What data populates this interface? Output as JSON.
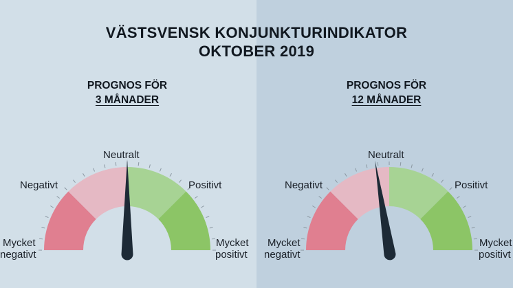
{
  "title": {
    "line1": "VÄSTSVENSK KONJUNKTURINDIKATOR",
    "line2": "OKTOBER 2019"
  },
  "gauges": [
    {
      "heading": "PROGNOS FÖR",
      "period": "3 MÅNADER",
      "needle_fraction": 0.5,
      "labels": {
        "very_negative_1": "Mycket",
        "very_negative_2": "negativt",
        "negative": "Negativt",
        "neutral": "Neutralt",
        "positive": "Positivt",
        "very_positive_1": "Mycket",
        "very_positive_2": "positivt"
      }
    },
    {
      "heading": "PROGNOS FÖR",
      "period": "12 MÅNADER",
      "needle_fraction": 0.45,
      "labels": {
        "very_negative_1": "Mycket",
        "very_negative_2": "negativt",
        "negative": "Negativt",
        "neutral": "Neutralt",
        "positive": "Positivt",
        "very_positive_1": "Mycket",
        "very_positive_2": "positivt"
      }
    }
  ],
  "colors": {
    "very_negative": "#e07f90",
    "negative": "#e5b9c4",
    "positive": "#a7d394",
    "very_positive": "#8cc566",
    "needle": "#1d2a36",
    "ticks": "#8a96a0"
  }
}
